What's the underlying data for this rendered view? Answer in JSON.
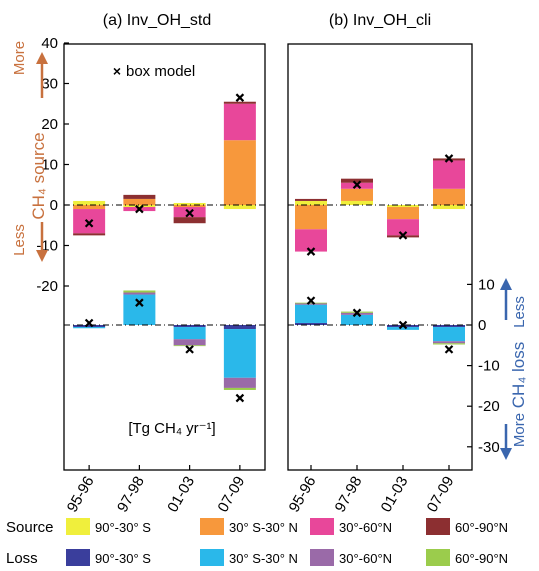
{
  "chart_data": {
    "type": "bar",
    "subtype": "stacked-bar",
    "panels": [
      {
        "title": "(a) Inv_OH_std"
      },
      {
        "title": "(b) Inv_OH_cli"
      }
    ],
    "categories": [
      "95-96",
      "97-98",
      "01-03",
      "07-09"
    ],
    "left_axis": {
      "ylim": [
        -30,
        40
      ],
      "ticks": [
        40,
        30,
        20,
        10,
        0,
        -10,
        -20
      ],
      "tick_labels": [
        "40",
        "30",
        "20",
        "10",
        "0",
        "-10",
        "-20"
      ],
      "label_top": "More",
      "label_main": "CH₄ source",
      "label_bottom": "Less"
    },
    "right_axis": {
      "ylim": [
        -30,
        10
      ],
      "ticks": [
        10,
        0,
        -10,
        -20,
        -30
      ],
      "tick_labels": [
        "10",
        "0",
        "-10",
        "-20",
        "-30"
      ],
      "label_top": "Less",
      "label_main": "CH₄ loss",
      "label_bottom": "More"
    },
    "units": "[Tg CH₄ yr⁻¹]",
    "marker_legend": "box model",
    "legend": {
      "source_label": "Source",
      "loss_label": "Loss",
      "source_entries": [
        {
          "label": "90°-30° S",
          "color": "#f0ef3c"
        },
        {
          "label": "30° S-30° N",
          "color": "#f7983c"
        },
        {
          "label": "30°-60°N",
          "color": "#e8479a"
        },
        {
          "label": "60°-90°N",
          "color": "#8c2f31"
        }
      ],
      "loss_entries": [
        {
          "label": "90°-30° S",
          "color": "#3a3e9c"
        },
        {
          "label": "30° S-30° N",
          "color": "#2ab8ea"
        },
        {
          "label": "30°-60°N",
          "color": "#9a6aa8"
        },
        {
          "label": "60°-90°N",
          "color": "#9bcc4c"
        }
      ]
    },
    "source_series": [
      {
        "name": "90°-30° S",
        "panel_a": [
          1.0,
          -0.5,
          0.5,
          -1.0
        ],
        "panel_b": [
          1.0,
          1.0,
          -0.5,
          -1.0
        ]
      },
      {
        "name": "30° S-30° N",
        "panel_a": [
          -1.0,
          1.5,
          -0.5,
          16.0
        ],
        "panel_b": [
          -6.0,
          3.0,
          -3.0,
          4.0
        ]
      },
      {
        "name": "30°-60°N",
        "panel_a": [
          -6.0,
          -1.0,
          -2.5,
          9.0
        ],
        "panel_b": [
          -5.5,
          1.5,
          -4.0,
          7.0
        ]
      },
      {
        "name": "60°-90°N",
        "panel_a": [
          -0.5,
          1.0,
          -1.5,
          0.5
        ],
        "panel_b": [
          0.5,
          1.0,
          -0.5,
          0.5
        ]
      }
    ],
    "loss_series": [
      {
        "name": "90°-30° S",
        "panel_a": [
          -0.5,
          0.0,
          -0.5,
          -1.0
        ],
        "panel_b": [
          0.5,
          0.0,
          -0.5,
          -0.5
        ]
      },
      {
        "name": "30° S-30° N",
        "panel_a": [
          -0.3,
          7.5,
          -3.0,
          -12.0
        ],
        "panel_b": [
          4.5,
          2.5,
          -0.7,
          -3.5
        ]
      },
      {
        "name": "30°-60°N",
        "panel_a": [
          0.0,
          0.5,
          -1.5,
          -2.5
        ],
        "panel_b": [
          0.3,
          0.5,
          0.0,
          -0.5
        ]
      },
      {
        "name": "60°-90°N",
        "panel_a": [
          0.0,
          0.5,
          -0.2,
          -0.5
        ],
        "panel_b": [
          0.2,
          0.3,
          0.0,
          -0.3
        ]
      }
    ],
    "box_model_source": {
      "panel_a": [
        -4.5,
        -1.0,
        -2.0,
        26.5
      ],
      "panel_b": [
        -11.5,
        5.0,
        -7.5,
        11.5
      ]
    },
    "box_model_loss": {
      "panel_a": [
        0.5,
        5.5,
        -6.0,
        -18.0
      ],
      "panel_b": [
        6.0,
        3.0,
        0.0,
        -6.0
      ]
    },
    "reference_lines": [
      0,
      0
    ]
  }
}
